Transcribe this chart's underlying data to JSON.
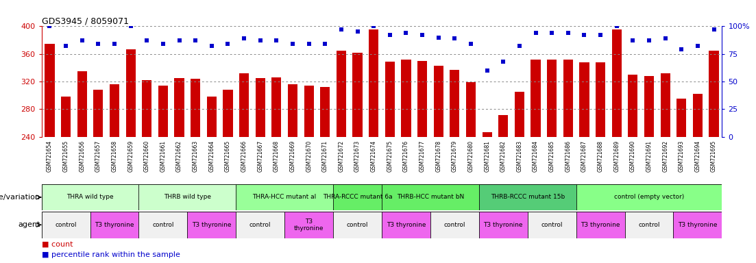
{
  "title": "GDS3945 / 8059071",
  "samples": [
    "GSM721654",
    "GSM721655",
    "GSM721656",
    "GSM721657",
    "GSM721658",
    "GSM721659",
    "GSM721660",
    "GSM721661",
    "GSM721662",
    "GSM721663",
    "GSM721664",
    "GSM721665",
    "GSM721666",
    "GSM721667",
    "GSM721668",
    "GSM721669",
    "GSM721670",
    "GSM721671",
    "GSM721672",
    "GSM721673",
    "GSM721674",
    "GSM721675",
    "GSM721676",
    "GSM721677",
    "GSM721678",
    "GSM721679",
    "GSM721680",
    "GSM721681",
    "GSM721682",
    "GSM721683",
    "GSM721684",
    "GSM721685",
    "GSM721686",
    "GSM721687",
    "GSM721688",
    "GSM721689",
    "GSM721690",
    "GSM721691",
    "GSM721692",
    "GSM721693",
    "GSM721694",
    "GSM721695"
  ],
  "bar_values": [
    375,
    298,
    335,
    308,
    316,
    367,
    322,
    314,
    325,
    324,
    298,
    308,
    332,
    325,
    326,
    316,
    314,
    312,
    365,
    362,
    395,
    349,
    352,
    350,
    343,
    337,
    319,
    247,
    271,
    305,
    352,
    352,
    352,
    348,
    348,
    395,
    330,
    328,
    332,
    295,
    302,
    365
  ],
  "percentile_values": [
    100,
    82,
    87,
    84,
    84,
    100,
    87,
    84,
    87,
    87,
    82,
    84,
    89,
    87,
    87,
    84,
    84,
    84,
    97,
    95,
    100,
    92,
    94,
    92,
    90,
    89,
    84,
    60,
    68,
    82,
    94,
    94,
    94,
    92,
    92,
    100,
    87,
    87,
    89,
    79,
    82,
    97
  ],
  "ymin": 240,
  "ymax": 400,
  "yticks": [
    240,
    280,
    320,
    360,
    400
  ],
  "bar_color": "#cc0000",
  "dot_color": "#0000cc",
  "grid_color": "#888888",
  "dot_yticks": [
    0,
    25,
    50,
    75,
    100
  ],
  "genotype_groups": [
    {
      "label": "THRA wild type",
      "start": 0,
      "end": 6,
      "color": "#ccffcc"
    },
    {
      "label": "THRB wild type",
      "start": 6,
      "end": 12,
      "color": "#ccffcc"
    },
    {
      "label": "THRA-HCC mutant al",
      "start": 12,
      "end": 18,
      "color": "#99ff99"
    },
    {
      "label": "THRA-RCCC mutant 6a",
      "start": 18,
      "end": 21,
      "color": "#66ee66"
    },
    {
      "label": "THRB-HCC mutant bN",
      "start": 21,
      "end": 27,
      "color": "#66ee66"
    },
    {
      "label": "THRB-RCCC mutant 15b",
      "start": 27,
      "end": 33,
      "color": "#55cc77"
    },
    {
      "label": "control (empty vector)",
      "start": 33,
      "end": 42,
      "color": "#88ff88"
    }
  ],
  "agent_groups": [
    {
      "label": "control",
      "start": 0,
      "end": 3,
      "color": "#f0f0f0"
    },
    {
      "label": "T3 thyronine",
      "start": 3,
      "end": 6,
      "color": "#ee66ee"
    },
    {
      "label": "control",
      "start": 6,
      "end": 9,
      "color": "#f0f0f0"
    },
    {
      "label": "T3 thyronine",
      "start": 9,
      "end": 12,
      "color": "#ee66ee"
    },
    {
      "label": "control",
      "start": 12,
      "end": 15,
      "color": "#f0f0f0"
    },
    {
      "label": "T3\nthyronine",
      "start": 15,
      "end": 18,
      "color": "#ee66ee"
    },
    {
      "label": "control",
      "start": 18,
      "end": 21,
      "color": "#f0f0f0"
    },
    {
      "label": "T3 thyronine",
      "start": 21,
      "end": 24,
      "color": "#ee66ee"
    },
    {
      "label": "control",
      "start": 24,
      "end": 27,
      "color": "#f0f0f0"
    },
    {
      "label": "T3 thyronine",
      "start": 27,
      "end": 30,
      "color": "#ee66ee"
    },
    {
      "label": "control",
      "start": 30,
      "end": 33,
      "color": "#f0f0f0"
    },
    {
      "label": "T3 thyronine",
      "start": 33,
      "end": 36,
      "color": "#ee66ee"
    },
    {
      "label": "control",
      "start": 36,
      "end": 39,
      "color": "#f0f0f0"
    },
    {
      "label": "T3 thyronine",
      "start": 39,
      "end": 42,
      "color": "#ee66ee"
    }
  ],
  "genotype_label": "genotype/variation",
  "agent_label": "agent",
  "legend_count_color": "#cc0000",
  "legend_dot_color": "#0000cc"
}
